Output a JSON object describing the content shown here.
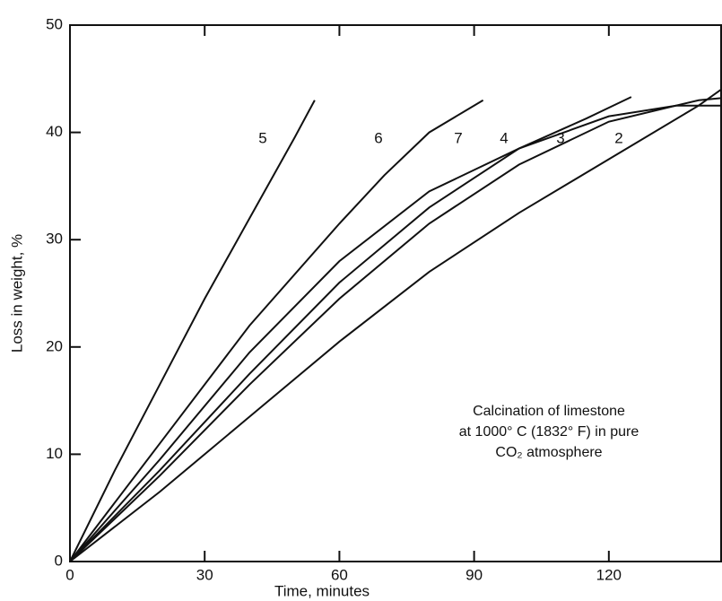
{
  "chart_data": {
    "type": "line",
    "xlabel": "Time, minutes",
    "ylabel": "Loss in weight, %",
    "annotation": [
      "Calcination of limestone",
      "at 1000° C (1832° F) in pure",
      "CO₂ atmosphere"
    ],
    "xlim": [
      0,
      145
    ],
    "ylim": [
      0,
      50
    ],
    "xticks": [
      0,
      30,
      60,
      90,
      120
    ],
    "yticks": [
      0,
      10,
      20,
      30,
      40,
      50
    ],
    "series": [
      {
        "name": "5",
        "color": "#111111",
        "x": [
          0,
          10,
          20,
          30,
          40,
          50,
          54.5
        ],
        "values": [
          0,
          8.5,
          16.5,
          24.5,
          32,
          39.5,
          43
        ]
      },
      {
        "name": "6",
        "color": "#111111",
        "x": [
          0,
          20,
          40,
          60,
          70,
          80,
          92
        ],
        "values": [
          0,
          11,
          22,
          31.5,
          36,
          40,
          43
        ]
      },
      {
        "name": "7",
        "color": "#111111",
        "x": [
          0,
          20,
          40,
          60,
          80,
          100,
          115,
          125
        ],
        "values": [
          0,
          9.5,
          19.5,
          28,
          34.5,
          38.5,
          41.3,
          43.3
        ]
      },
      {
        "name": "4",
        "color": "#111111",
        "x": [
          0,
          20,
          40,
          60,
          80,
          100,
          120,
          135,
          145
        ],
        "values": [
          0,
          8.5,
          17.5,
          26,
          33,
          38.5,
          41.5,
          42.5,
          42.5
        ]
      },
      {
        "name": "3",
        "color": "#111111",
        "x": [
          0,
          20,
          40,
          60,
          80,
          100,
          120,
          140,
          145
        ],
        "values": [
          0,
          8,
          16.5,
          24.5,
          31.5,
          37,
          41,
          43,
          43.2
        ]
      },
      {
        "name": "2",
        "color": "#111111",
        "x": [
          0,
          20,
          40,
          60,
          80,
          100,
          120,
          140,
          145
        ],
        "values": [
          0,
          6.5,
          13.5,
          20.5,
          27,
          32.5,
          37.5,
          42.5,
          44
        ]
      }
    ]
  }
}
